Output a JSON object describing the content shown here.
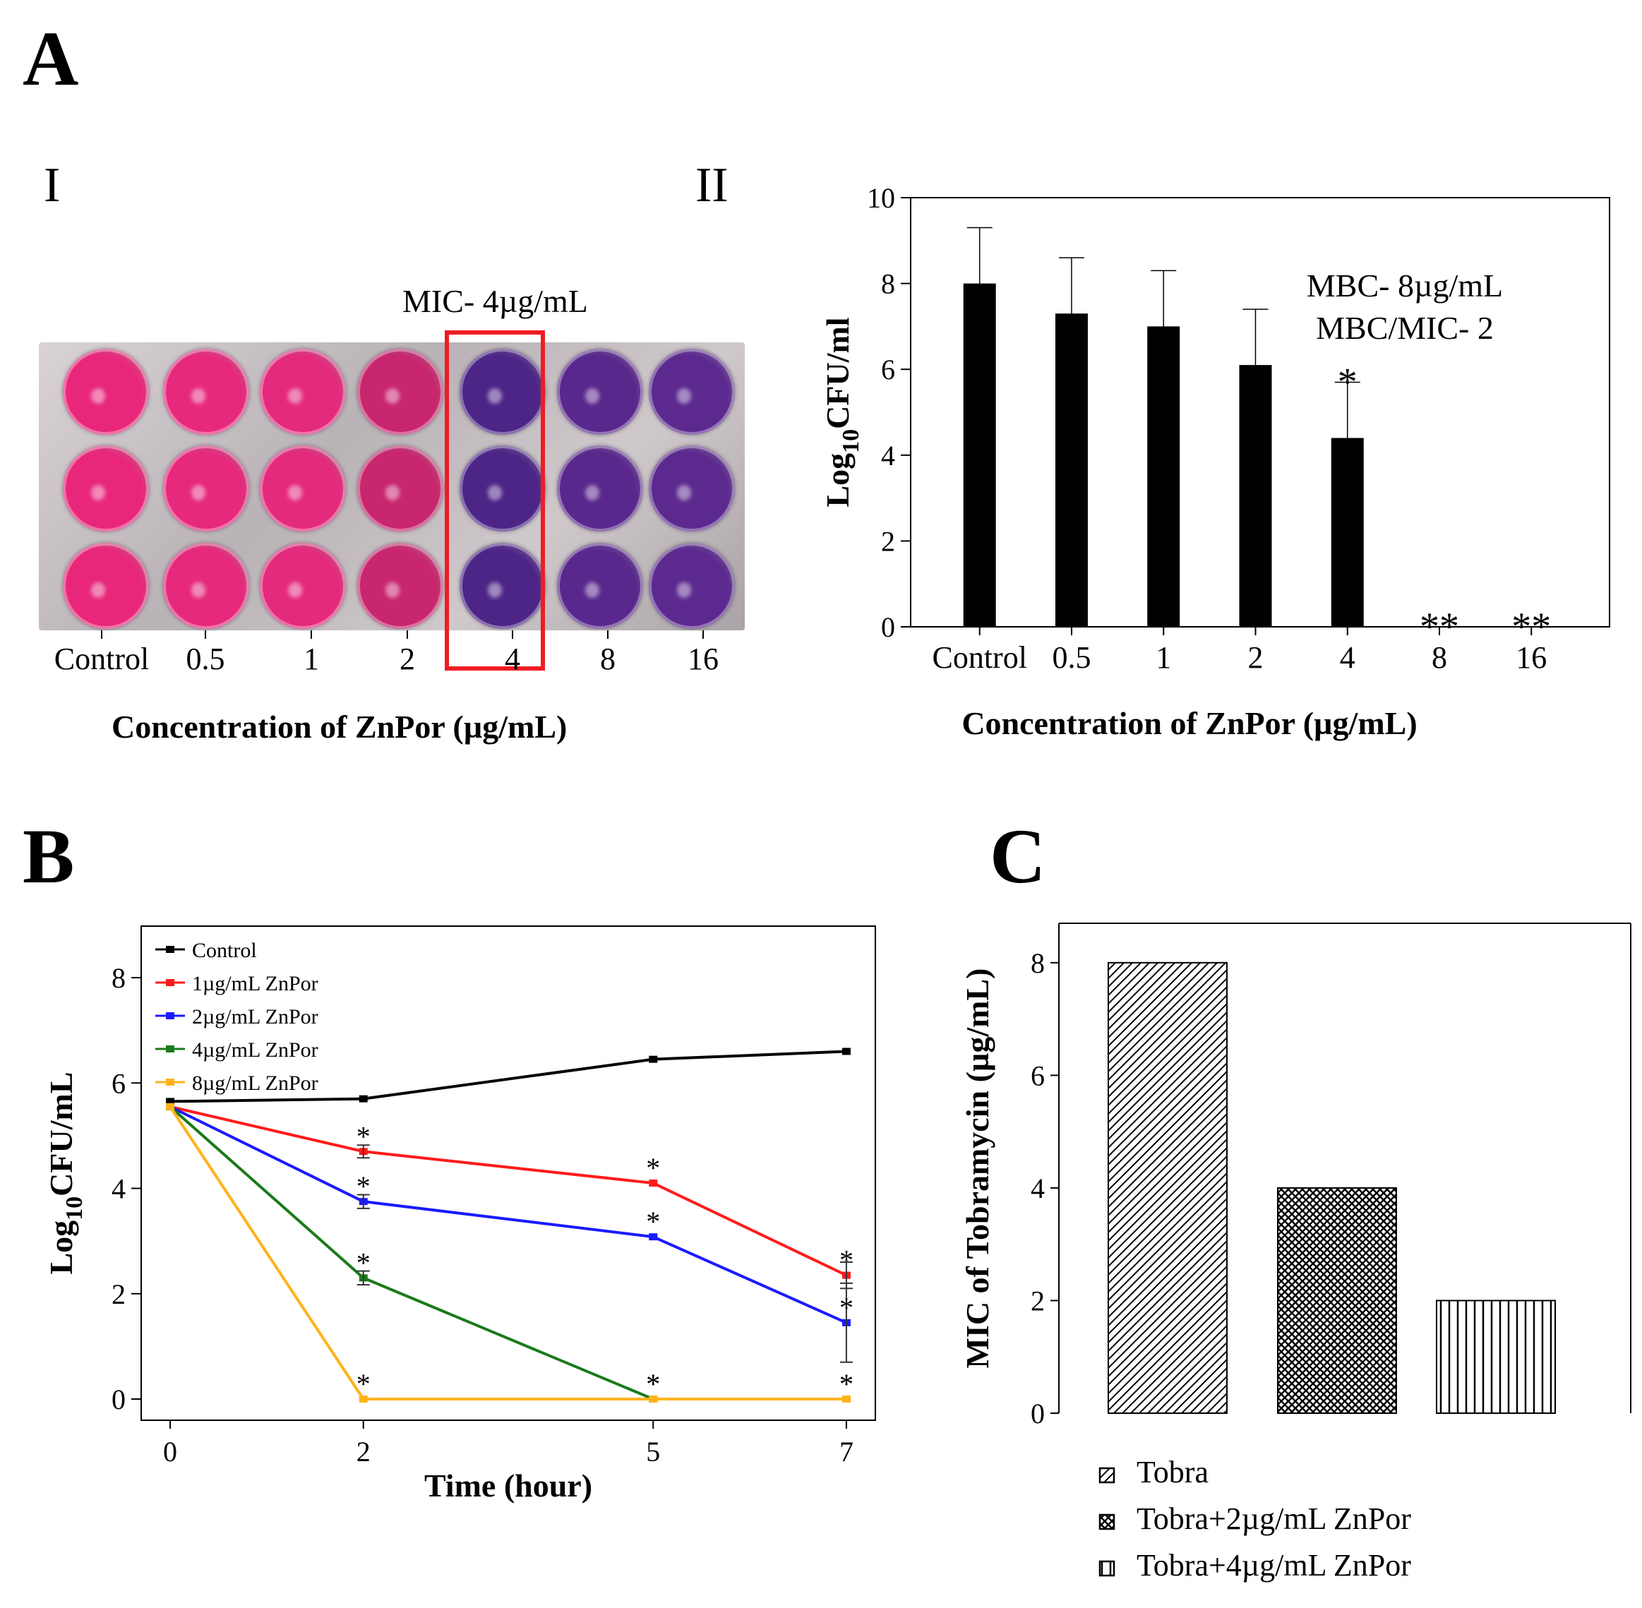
{
  "panels": {
    "A": "A",
    "B": "B",
    "C": "C",
    "I": "I",
    "II": "II"
  },
  "plate": {
    "mic_label": "MIC- 4µg/mL",
    "columns": [
      "Control",
      "0.5",
      "1",
      "2",
      "4",
      "8",
      "16"
    ],
    "column_colors": [
      "#e8277a",
      "#e6297c",
      "#e42a7d",
      "#c8266f",
      "#4d2587",
      "#59288d",
      "#5c2a8f"
    ],
    "mic_column_index": 4,
    "xlabel": "Concentration of ZnPor (µg/mL)",
    "highlight_color": "#ee1c24"
  },
  "chart_data": [
    {
      "id": "A-II",
      "type": "bar",
      "categories": [
        "Control",
        "0.5",
        "1",
        "2",
        "4",
        "8",
        "16"
      ],
      "values": [
        8.0,
        7.3,
        7.0,
        6.1,
        4.4,
        0,
        0
      ],
      "errors": [
        1.3,
        1.3,
        1.3,
        1.3,
        1.3,
        0,
        0
      ],
      "significance": [
        "",
        "",
        "",
        "",
        "*",
        "**",
        "**"
      ],
      "xlabel": "Concentration of ZnPor (µg/mL)",
      "ylabel_main": "Log",
      "ylabel_sub": "10",
      "ylabel_rest": "CFU/ml",
      "ylim": [
        0,
        10
      ],
      "yticks": [
        "0",
        "2",
        "4",
        "6",
        "8",
        "10"
      ],
      "annotations": [
        "MBC- 8µg/mL",
        "MBC/MIC- 2"
      ],
      "bar_color": "#000000"
    },
    {
      "id": "B",
      "type": "line",
      "x": [
        0,
        2,
        5,
        7
      ],
      "xticks": [
        "0",
        "2",
        "5",
        "7"
      ],
      "xlabel": "Time (hour)",
      "ylabel_main": "Log",
      "ylabel_sub": "10",
      "ylabel_rest": "CFU/mL",
      "ylim": [
        0,
        9
      ],
      "yticks": [
        "0",
        "2",
        "4",
        "6",
        "8"
      ],
      "legend_position": "top-left",
      "series": [
        {
          "name": "Control",
          "color": "#000000",
          "values": [
            5.65,
            5.7,
            6.45,
            6.6
          ],
          "errors": [
            0.04,
            0.04,
            0.04,
            0.04
          ],
          "stars": [
            "",
            "",
            "",
            ""
          ]
        },
        {
          "name": "1µg/mL ZnPor",
          "color": "#ff1a1a",
          "values": [
            5.55,
            4.7,
            4.1,
            2.35
          ],
          "errors": [
            0.04,
            0.12,
            0.04,
            0.25
          ],
          "stars": [
            "",
            "*",
            "*",
            "*"
          ]
        },
        {
          "name": "2µg/mL ZnPor",
          "color": "#1a1aff",
          "values": [
            5.55,
            3.75,
            3.08,
            1.45
          ],
          "errors": [
            0.04,
            0.13,
            0.04,
            0.75
          ],
          "stars": [
            "",
            "*",
            "*",
            "*"
          ]
        },
        {
          "name": "4µg/mL ZnPor",
          "color": "#1a7a1a",
          "values": [
            5.55,
            2.3,
            0,
            0
          ],
          "errors": [
            0.04,
            0.13,
            0,
            0
          ],
          "stars": [
            "",
            "*",
            "*",
            "*"
          ]
        },
        {
          "name": "8µg/mL ZnPor",
          "color": "#ffb319",
          "values": [
            5.55,
            0,
            0,
            0
          ],
          "errors": [
            0.04,
            0,
            0,
            0
          ],
          "stars": [
            "",
            "*",
            "*",
            "*"
          ]
        }
      ]
    },
    {
      "id": "C",
      "type": "bar",
      "categories": [
        "Tobra",
        "Tobra+2µg/mL ZnPor",
        "Tobra+4µg/mL ZnPor"
      ],
      "values": [
        8,
        4,
        2
      ],
      "patterns": [
        "diagonal",
        "crosshatch",
        "vertical"
      ],
      "ylabel": "MIC of Tobramycin (µg/mL)",
      "ylim": [
        0,
        9
      ],
      "yticks": [
        "0",
        "2",
        "4",
        "6",
        "8"
      ],
      "legend_position": "bottom"
    }
  ]
}
